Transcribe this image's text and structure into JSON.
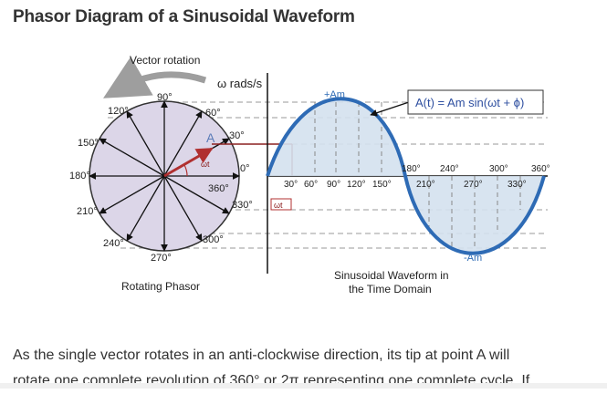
{
  "page": {
    "title": "Phasor Diagram of a Sinusoidal Waveform"
  },
  "phasor": {
    "vector_rotation_label": "Vector rotation",
    "omega_label": "ω rads/s",
    "point_label": "A",
    "omega_t_label": "ωt",
    "rotating_phasor_label": "Rotating Phasor",
    "angle_labels": {
      "a0": "0°",
      "a30": "30°",
      "a60": "60°",
      "a90": "90°",
      "a120": "120°",
      "a150": "150°",
      "a180": "180°",
      "a210": "210°",
      "a240": "240°",
      "a270": "270°",
      "a300": "300°",
      "a330": "330°",
      "a360": "360°"
    }
  },
  "waveform": {
    "plus_am": "+Am",
    "minus_am": "-Am",
    "equation": "A(t) = Am sin(ωt + ϕ)",
    "omega_t_label": "ωt",
    "caption_line1": "Sinusoidal Waveform in",
    "caption_line2": "the Time Domain",
    "tick_labels_lower": [
      "30°",
      "60°",
      "90°",
      "120°",
      "150°"
    ],
    "tick_labels_upper": [
      "180°",
      "240°",
      "300°",
      "360°"
    ],
    "tick_labels_lower2": [
      "210°",
      "270°",
      "330°"
    ]
  },
  "body_text": {
    "line1": "As the single vector rotates in an anti-clockwise direction, its tip at point A will",
    "line2": "rotate one complete revolution of 360° or 2π representing one complete cycle. If"
  },
  "colors": {
    "circle_fill": "#dcd6e8",
    "wave_stroke": "#2e6bb5",
    "wave_fill": "#d4e1ee",
    "phasor_red": "#b03030",
    "arrow_gray": "#9e9e9e"
  }
}
